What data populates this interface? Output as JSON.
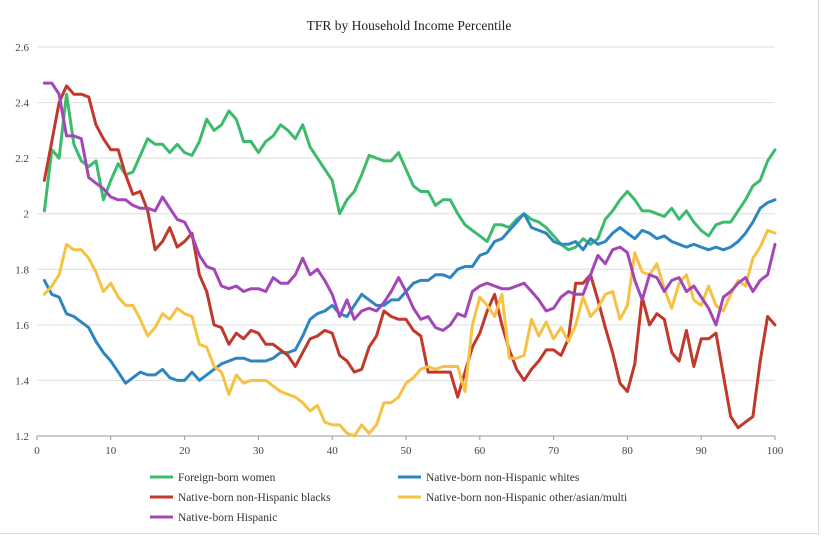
{
  "chart_data": {
    "type": "line",
    "title": "TFR by Household Income Percentile",
    "xlabel": "",
    "ylabel": "",
    "xlim": [
      0,
      100
    ],
    "ylim": [
      1.2,
      2.6
    ],
    "xticks": [
      0,
      10,
      20,
      30,
      40,
      50,
      60,
      70,
      80,
      90,
      100
    ],
    "yticks": [
      1.2,
      1.4,
      1.6,
      1.8,
      2.0,
      2.2,
      2.4,
      2.6
    ],
    "ytick_labels": [
      "1.2",
      "1.4",
      "1.6",
      "1.8",
      "2",
      "2.2",
      "2.4",
      "2.6"
    ],
    "grid": "horizontal",
    "legend_position": "bottom",
    "x": [
      1,
      2,
      3,
      4,
      5,
      6,
      7,
      8,
      9,
      10,
      11,
      12,
      13,
      14,
      15,
      16,
      17,
      18,
      19,
      20,
      21,
      22,
      23,
      24,
      25,
      26,
      27,
      28,
      29,
      30,
      31,
      32,
      33,
      34,
      35,
      36,
      37,
      38,
      39,
      40,
      41,
      42,
      43,
      44,
      45,
      46,
      47,
      48,
      49,
      50,
      51,
      52,
      53,
      54,
      55,
      56,
      57,
      58,
      59,
      60,
      61,
      62,
      63,
      64,
      65,
      66,
      67,
      68,
      69,
      70,
      71,
      72,
      73,
      74,
      75,
      76,
      77,
      78,
      79,
      80,
      81,
      82,
      83,
      84,
      85,
      86,
      87,
      88,
      89,
      90,
      91,
      92,
      93,
      94,
      95,
      96,
      97,
      98,
      99,
      100
    ],
    "series": [
      {
        "name": "Foreign-born women",
        "color": "#3dbb6c",
        "values": [
          2.01,
          2.23,
          2.2,
          2.43,
          2.25,
          2.19,
          2.17,
          2.19,
          2.05,
          2.12,
          2.18,
          2.14,
          2.15,
          2.21,
          2.27,
          2.25,
          2.25,
          2.22,
          2.25,
          2.22,
          2.21,
          2.26,
          2.34,
          2.3,
          2.32,
          2.37,
          2.34,
          2.26,
          2.26,
          2.22,
          2.26,
          2.28,
          2.32,
          2.3,
          2.27,
          2.32,
          2.24,
          2.2,
          2.16,
          2.12,
          2.0,
          2.05,
          2.08,
          2.14,
          2.21,
          2.2,
          2.19,
          2.19,
          2.22,
          2.16,
          2.1,
          2.08,
          2.08,
          2.03,
          2.05,
          2.05,
          2.0,
          1.96,
          1.94,
          1.92,
          1.9,
          1.96,
          1.96,
          1.95,
          1.98,
          2.0,
          1.98,
          1.97,
          1.95,
          1.92,
          1.89,
          1.87,
          1.88,
          1.91,
          1.89,
          1.91,
          1.98,
          2.01,
          2.05,
          2.08,
          2.05,
          2.01,
          2.01,
          2.0,
          1.99,
          2.02,
          1.98,
          2.01,
          1.97,
          1.94,
          1.92,
          1.96,
          1.97,
          1.97,
          2.01,
          2.05,
          2.1,
          2.12,
          2.19,
          2.23
        ]
      },
      {
        "name": "Native-born non-Hispanic whites",
        "color": "#2e86c1",
        "values": [
          1.76,
          1.71,
          1.7,
          1.64,
          1.63,
          1.61,
          1.59,
          1.54,
          1.5,
          1.47,
          1.43,
          1.39,
          1.41,
          1.43,
          1.42,
          1.42,
          1.44,
          1.41,
          1.4,
          1.4,
          1.43,
          1.4,
          1.42,
          1.44,
          1.46,
          1.47,
          1.48,
          1.48,
          1.47,
          1.47,
          1.47,
          1.48,
          1.5,
          1.5,
          1.51,
          1.56,
          1.62,
          1.64,
          1.65,
          1.67,
          1.64,
          1.63,
          1.67,
          1.71,
          1.69,
          1.67,
          1.67,
          1.69,
          1.69,
          1.72,
          1.75,
          1.76,
          1.76,
          1.78,
          1.78,
          1.77,
          1.8,
          1.81,
          1.81,
          1.85,
          1.86,
          1.9,
          1.91,
          1.94,
          1.97,
          2.0,
          1.95,
          1.94,
          1.93,
          1.9,
          1.89,
          1.89,
          1.9,
          1.87,
          1.91,
          1.89,
          1.9,
          1.93,
          1.95,
          1.93,
          1.91,
          1.94,
          1.93,
          1.91,
          1.92,
          1.9,
          1.89,
          1.88,
          1.89,
          1.88,
          1.87,
          1.88,
          1.87,
          1.88,
          1.9,
          1.93,
          1.97,
          2.02,
          2.04,
          2.05
        ]
      },
      {
        "name": "Native-born non-Hispanic blacks",
        "color": "#c0392b",
        "values": [
          2.12,
          2.26,
          2.4,
          2.46,
          2.43,
          2.43,
          2.42,
          2.32,
          2.27,
          2.23,
          2.23,
          2.14,
          2.07,
          2.08,
          2.01,
          1.87,
          1.9,
          1.95,
          1.88,
          1.9,
          1.93,
          1.78,
          1.72,
          1.6,
          1.59,
          1.53,
          1.57,
          1.55,
          1.58,
          1.57,
          1.53,
          1.53,
          1.51,
          1.49,
          1.45,
          1.5,
          1.55,
          1.56,
          1.58,
          1.57,
          1.49,
          1.47,
          1.43,
          1.44,
          1.52,
          1.56,
          1.65,
          1.63,
          1.62,
          1.62,
          1.58,
          1.56,
          1.43,
          1.43,
          1.43,
          1.43,
          1.34,
          1.43,
          1.52,
          1.57,
          1.65,
          1.71,
          1.6,
          1.51,
          1.44,
          1.4,
          1.44,
          1.47,
          1.51,
          1.51,
          1.49,
          1.55,
          1.75,
          1.75,
          1.78,
          1.69,
          1.59,
          1.5,
          1.39,
          1.36,
          1.46,
          1.7,
          1.6,
          1.64,
          1.62,
          1.5,
          1.47,
          1.58,
          1.45,
          1.55,
          1.55,
          1.57,
          1.42,
          1.27,
          1.23,
          1.25,
          1.27,
          1.47,
          1.63,
          1.6
        ]
      },
      {
        "name": "Native-born non-Hispanic other/asian/multi",
        "color": "#f5c243",
        "values": [
          1.71,
          1.74,
          1.78,
          1.89,
          1.87,
          1.87,
          1.84,
          1.79,
          1.72,
          1.75,
          1.7,
          1.67,
          1.67,
          1.62,
          1.56,
          1.59,
          1.64,
          1.62,
          1.66,
          1.64,
          1.63,
          1.53,
          1.52,
          1.45,
          1.43,
          1.35,
          1.42,
          1.39,
          1.4,
          1.4,
          1.4,
          1.38,
          1.36,
          1.35,
          1.34,
          1.32,
          1.29,
          1.31,
          1.25,
          1.24,
          1.24,
          1.21,
          1.2,
          1.24,
          1.21,
          1.24,
          1.32,
          1.32,
          1.34,
          1.39,
          1.41,
          1.44,
          1.45,
          1.44,
          1.45,
          1.45,
          1.45,
          1.36,
          1.6,
          1.7,
          1.67,
          1.63,
          1.71,
          1.48,
          1.48,
          1.49,
          1.62,
          1.56,
          1.61,
          1.55,
          1.59,
          1.54,
          1.6,
          1.7,
          1.63,
          1.66,
          1.71,
          1.72,
          1.62,
          1.67,
          1.86,
          1.79,
          1.78,
          1.82,
          1.73,
          1.66,
          1.75,
          1.78,
          1.69,
          1.67,
          1.74,
          1.67,
          1.65,
          1.71,
          1.76,
          1.74,
          1.84,
          1.88,
          1.94,
          1.93
        ]
      },
      {
        "name": "Native-born Hispanic",
        "color": "#a347b8",
        "values": [
          2.47,
          2.47,
          2.43,
          2.28,
          2.28,
          2.27,
          2.13,
          2.11,
          2.09,
          2.06,
          2.05,
          2.05,
          2.03,
          2.02,
          2.02,
          2.01,
          2.06,
          2.02,
          1.98,
          1.97,
          1.92,
          1.85,
          1.81,
          1.8,
          1.74,
          1.73,
          1.74,
          1.72,
          1.73,
          1.73,
          1.72,
          1.77,
          1.75,
          1.75,
          1.78,
          1.84,
          1.78,
          1.8,
          1.76,
          1.71,
          1.63,
          1.69,
          1.62,
          1.65,
          1.66,
          1.65,
          1.68,
          1.72,
          1.77,
          1.72,
          1.66,
          1.62,
          1.63,
          1.59,
          1.58,
          1.6,
          1.64,
          1.63,
          1.72,
          1.74,
          1.75,
          1.74,
          1.73,
          1.73,
          1.74,
          1.75,
          1.72,
          1.69,
          1.65,
          1.66,
          1.7,
          1.72,
          1.71,
          1.71,
          1.78,
          1.85,
          1.82,
          1.87,
          1.88,
          1.86,
          1.76,
          1.69,
          1.78,
          1.77,
          1.72,
          1.76,
          1.77,
          1.72,
          1.74,
          1.7,
          1.66,
          1.6,
          1.7,
          1.72,
          1.75,
          1.77,
          1.72,
          1.76,
          1.78,
          1.89
        ]
      }
    ]
  }
}
